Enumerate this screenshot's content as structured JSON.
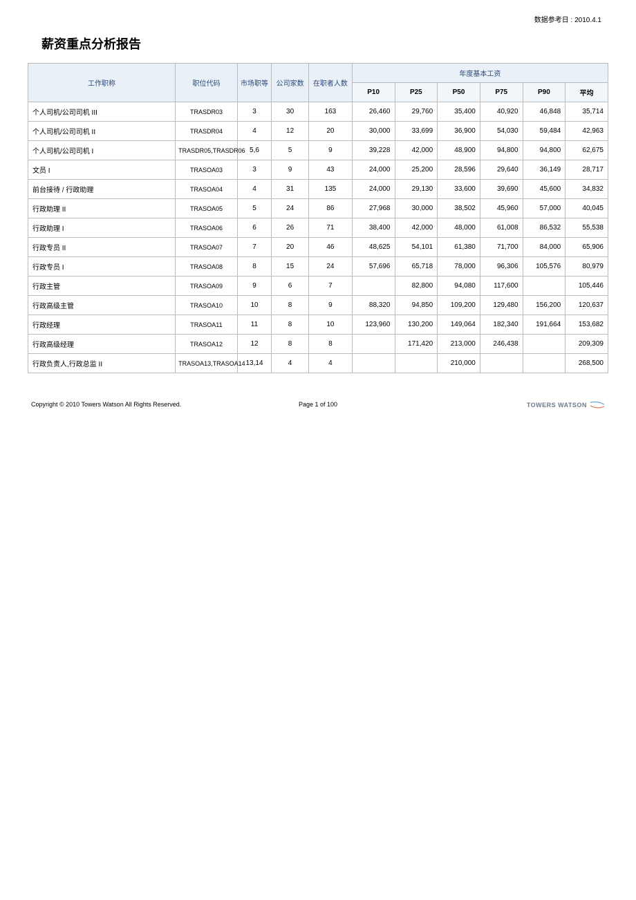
{
  "ref_date": "数据参考日 : 2010.4.1",
  "title": "薪资重点分析报告",
  "headers": {
    "job_title": "工作职称",
    "position_code": "职位代码",
    "market_grade": "市场职等",
    "company_count": "公司家数",
    "incumbent_count": "在职者人数",
    "annual_base": "年度基本工资",
    "p10": "P10",
    "p25": "P25",
    "p50": "P50",
    "p75": "P75",
    "p90": "P90",
    "avg": "平均"
  },
  "col_widths": {
    "job": 190,
    "code": 78,
    "grade": 44,
    "comp": 48,
    "inc": 56,
    "pcol": 55
  },
  "rows": [
    {
      "job": "个人司机/公司司机 III",
      "code": "TRASDR03",
      "grade": "3",
      "comp": "30",
      "inc": "163",
      "p10": "26,460",
      "p25": "29,760",
      "p50": "35,400",
      "p75": "40,920",
      "p90": "46,848",
      "avg": "35,714"
    },
    {
      "job": "个人司机/公司司机 II",
      "code": "TRASDR04",
      "grade": "4",
      "comp": "12",
      "inc": "20",
      "p10": "30,000",
      "p25": "33,699",
      "p50": "36,900",
      "p75": "54,030",
      "p90": "59,484",
      "avg": "42,963"
    },
    {
      "job": "个人司机/公司司机 I",
      "code": "TRASDR05,TRASDR06",
      "grade": "5,6",
      "comp": "5",
      "inc": "9",
      "p10": "39,228",
      "p25": "42,000",
      "p50": "48,900",
      "p75": "94,800",
      "p90": "94,800",
      "avg": "62,675"
    },
    {
      "job": "文员 I",
      "code": "TRASOA03",
      "grade": "3",
      "comp": "9",
      "inc": "43",
      "p10": "24,000",
      "p25": "25,200",
      "p50": "28,596",
      "p75": "29,640",
      "p90": "36,149",
      "avg": "28,717"
    },
    {
      "job": "前台接待 / 行政助理",
      "code": "TRASOA04",
      "grade": "4",
      "comp": "31",
      "inc": "135",
      "p10": "24,000",
      "p25": "29,130",
      "p50": "33,600",
      "p75": "39,690",
      "p90": "45,600",
      "avg": "34,832"
    },
    {
      "job": "行政助理 II",
      "code": "TRASOA05",
      "grade": "5",
      "comp": "24",
      "inc": "86",
      "p10": "27,968",
      "p25": "30,000",
      "p50": "38,502",
      "p75": "45,960",
      "p90": "57,000",
      "avg": "40,045"
    },
    {
      "job": "行政助理 I",
      "code": "TRASOA06",
      "grade": "6",
      "comp": "26",
      "inc": "71",
      "p10": "38,400",
      "p25": "42,000",
      "p50": "48,000",
      "p75": "61,008",
      "p90": "86,532",
      "avg": "55,538"
    },
    {
      "job": "行政专员 II",
      "code": "TRASOA07",
      "grade": "7",
      "comp": "20",
      "inc": "46",
      "p10": "48,625",
      "p25": "54,101",
      "p50": "61,380",
      "p75": "71,700",
      "p90": "84,000",
      "avg": "65,906"
    },
    {
      "job": "行政专员 I",
      "code": "TRASOA08",
      "grade": "8",
      "comp": "15",
      "inc": "24",
      "p10": "57,696",
      "p25": "65,718",
      "p50": "78,000",
      "p75": "96,306",
      "p90": "105,576",
      "avg": "80,979"
    },
    {
      "job": "行政主管",
      "code": "TRASOA09",
      "grade": "9",
      "comp": "6",
      "inc": "7",
      "p10": "",
      "p25": "82,800",
      "p50": "94,080",
      "p75": "117,600",
      "p90": "",
      "avg": "105,446"
    },
    {
      "job": "行政高级主管",
      "code": "TRASOA10",
      "grade": "10",
      "comp": "8",
      "inc": "9",
      "p10": "88,320",
      "p25": "94,850",
      "p50": "109,200",
      "p75": "129,480",
      "p90": "156,200",
      "avg": "120,637"
    },
    {
      "job": "行政经理",
      "code": "TRASOA11",
      "grade": "11",
      "comp": "8",
      "inc": "10",
      "p10": "123,960",
      "p25": "130,200",
      "p50": "149,064",
      "p75": "182,340",
      "p90": "191,664",
      "avg": "153,682"
    },
    {
      "job": "行政高级经理",
      "code": "TRASOA12",
      "grade": "12",
      "comp": "8",
      "inc": "8",
      "p10": "",
      "p25": "171,420",
      "p50": "213,000",
      "p75": "246,438",
      "p90": "",
      "avg": "209,309"
    },
    {
      "job": "行政负责人,行政总监 II",
      "code": "TRASOA13,TRASOA14",
      "grade": "13,14",
      "comp": "4",
      "inc": "4",
      "p10": "",
      "p25": "",
      "p50": "210,000",
      "p75": "",
      "p90": "",
      "avg": "268,500"
    }
  ],
  "footer": {
    "copyright": "Copyright © 2010 Towers Watson All Rights Reserved.",
    "page": "Page 1 of 100",
    "brand": "TOWERS WATSON"
  },
  "colors": {
    "header_bg": "#e9f0f7",
    "header_text": "#2a4a7a",
    "border": "#bbbbbb",
    "brand": "#6a7a8a",
    "swoosh1": "#5aa0d0",
    "swoosh2": "#e07040"
  }
}
